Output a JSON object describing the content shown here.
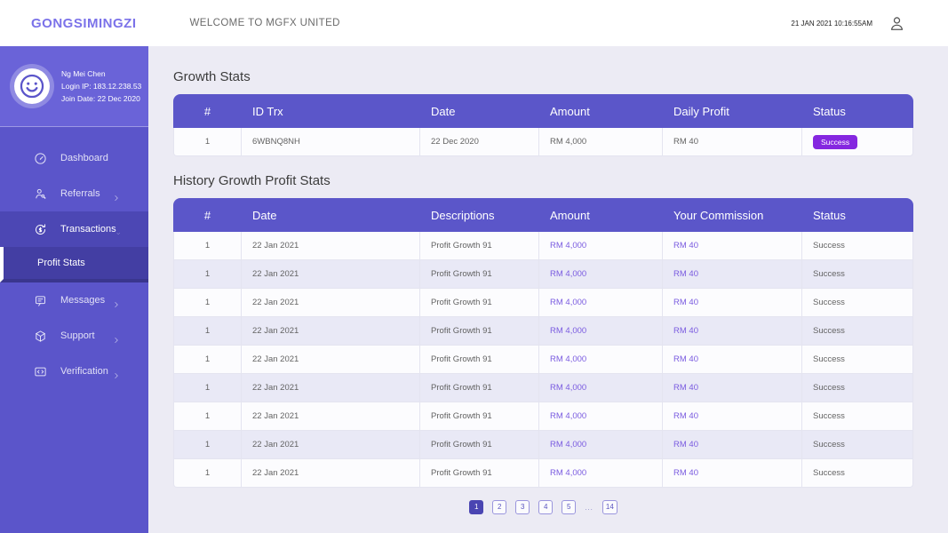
{
  "header": {
    "logo": "GONGSIMINGZI",
    "welcome": "WELCOME TO MGFX UNITED",
    "datetime": "21 JAN 2021 10:16:55AM",
    "user_icon": "user-icon"
  },
  "sidebar": {
    "profile": {
      "name": "Ng Mei Chen",
      "login_ip": "Login IP: 183.12.238.53",
      "join_date": "Join Date: 22 Dec 2020",
      "avatar_icon": "smiley-icon"
    },
    "menu": [
      {
        "label": "Dashboard",
        "icon": "gauge-icon",
        "chevron": null,
        "active": false
      },
      {
        "label": "Referrals",
        "icon": "referrals-icon",
        "chevron": "right",
        "active": false
      },
      {
        "label": "Transactions",
        "icon": "transactions-icon",
        "chevron": "down",
        "active": true,
        "submenu": [
          {
            "label": "Profit Stats",
            "active": true
          }
        ]
      },
      {
        "label": "Messages",
        "icon": "messages-icon",
        "chevron": "right",
        "active": false
      },
      {
        "label": "Support",
        "icon": "support-icon",
        "chevron": "right",
        "active": false
      },
      {
        "label": "Verification",
        "icon": "verification-icon",
        "chevron": "right",
        "active": false
      }
    ]
  },
  "growth_stats": {
    "title": "Growth Stats",
    "columns": [
      "#",
      "ID Trx",
      "Date",
      "Amount",
      "Daily Profit",
      "Status"
    ],
    "rows": [
      [
        "1",
        "6WBNQ8NH",
        "22 Dec 2020",
        "RM 4,000",
        "RM 40",
        "Success"
      ]
    ],
    "status_style": "badge"
  },
  "history_stats": {
    "title": "History Growth Profit Stats",
    "columns": [
      "#",
      "Date",
      "Descriptions",
      "Amount",
      "Your Commission",
      "Status"
    ],
    "rows": [
      [
        "1",
        "22 Jan 2021",
        "Profit Growth 91",
        "RM 4,000",
        "RM 40",
        "Success"
      ],
      [
        "1",
        "22 Jan 2021",
        "Profit Growth 91",
        "RM 4,000",
        "RM 40",
        "Success"
      ],
      [
        "1",
        "22 Jan 2021",
        "Profit Growth 91",
        "RM 4,000",
        "RM 40",
        "Success"
      ],
      [
        "1",
        "22 Jan 2021",
        "Profit Growth 91",
        "RM 4,000",
        "RM 40",
        "Success"
      ],
      [
        "1",
        "22 Jan 2021",
        "Profit Growth 91",
        "RM 4,000",
        "RM 40",
        "Success"
      ],
      [
        "1",
        "22 Jan 2021",
        "Profit Growth 91",
        "RM 4,000",
        "RM 40",
        "Success"
      ],
      [
        "1",
        "22 Jan 2021",
        "Profit Growth 91",
        "RM 4,000",
        "RM 40",
        "Success"
      ],
      [
        "1",
        "22 Jan 2021",
        "Profit Growth 91",
        "RM 4,000",
        "RM 40",
        "Success"
      ],
      [
        "1",
        "22 Jan 2021",
        "Profit Growth 91",
        "RM 4,000",
        "RM 40",
        "Success"
      ]
    ],
    "status_style": "text"
  },
  "pagination": {
    "pages": [
      "1",
      "2",
      "3",
      "4",
      "5",
      "...",
      "14"
    ],
    "active": "1"
  },
  "theme": {
    "page_bg": "#ecebf4",
    "sidebar_bg": "#5b55ca",
    "profile_bg": "#6a63d8",
    "active_item": "#4c47b4",
    "submenu_bg": "#433ea3",
    "submenu_strip": "#3a368e",
    "accent": "#5b56c9",
    "badge": "#8527e0",
    "amount_text": "#7a5be0",
    "logo": "#7b72e9",
    "pagination_active": "#4a45b2"
  }
}
